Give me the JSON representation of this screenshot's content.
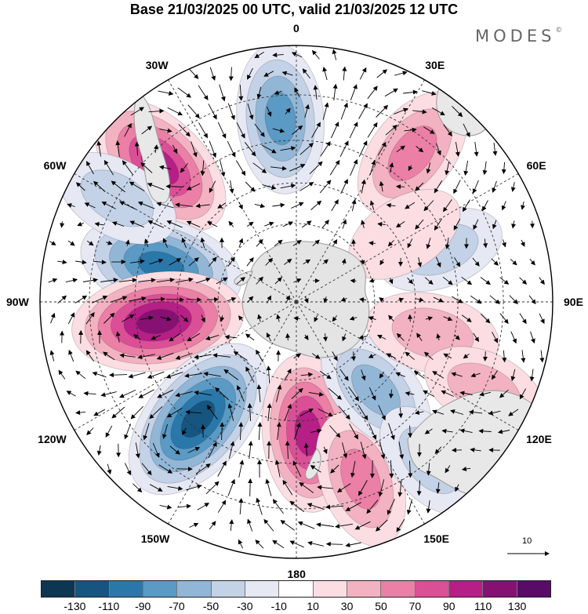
{
  "title": "Base 21/03/2025 00 UTC, valid 21/03/2025 12 UTC",
  "logo": {
    "text": "MODES",
    "mark": "©"
  },
  "projection": "south-polar-stereographic",
  "longitude_labels": [
    {
      "id": "0",
      "text": "0",
      "lon": 0
    },
    {
      "id": "30e",
      "text": "30E",
      "lon": 30
    },
    {
      "id": "60e",
      "text": "60E",
      "lon": 60
    },
    {
      "id": "90e",
      "text": "90E",
      "lon": 90
    },
    {
      "id": "120e",
      "text": "120E",
      "lon": 120
    },
    {
      "id": "150e",
      "text": "150E",
      "lon": 150
    },
    {
      "id": "180",
      "text": "180",
      "lon": 180
    },
    {
      "id": "150w",
      "text": "150W",
      "lon": -150
    },
    {
      "id": "120w",
      "text": "120W",
      "lon": -120
    },
    {
      "id": "90w",
      "text": "90W",
      "lon": -90
    },
    {
      "id": "60w",
      "text": "60W",
      "lon": -60
    },
    {
      "id": "30w",
      "text": "30W",
      "lon": -30
    }
  ],
  "field_anomalies": [
    {
      "lon": -45,
      "lat": -43,
      "value": 95
    },
    {
      "lon": -5,
      "lat": -45,
      "value": -75
    },
    {
      "lon": 38,
      "lat": -44,
      "value": 60
    },
    {
      "lon": -75,
      "lat": -55,
      "value": -100
    },
    {
      "lon": -98,
      "lat": -55,
      "value": 115
    },
    {
      "lon": -140,
      "lat": -52,
      "value": -125
    },
    {
      "lon": 175,
      "lat": -57,
      "value": 90
    },
    {
      "lon": 160,
      "lat": -44,
      "value": 55
    },
    {
      "lon": 138,
      "lat": -60,
      "value": -50
    },
    {
      "lon": 103,
      "lat": -55,
      "value": 45
    },
    {
      "lon": 70,
      "lat": -52,
      "value": -35
    },
    {
      "lon": 58,
      "lat": -58,
      "value": 25
    },
    {
      "lon": -60,
      "lat": -40,
      "value": -35
    },
    {
      "lon": 140,
      "lat": -40,
      "value": -30
    },
    {
      "lon": 115,
      "lat": -40,
      "value": 30
    }
  ],
  "wind_reference": {
    "label": "10",
    "value": 10
  },
  "colorbar": {
    "colors": [
      "#0e3552",
      "#15557f",
      "#2a78aa",
      "#5a9ac4",
      "#92b6d6",
      "#c3d2e6",
      "#e6e8f3",
      "#ffffff",
      "#fbdde2",
      "#f3b2c1",
      "#eb7fa5",
      "#db4f97",
      "#b51f86",
      "#861172",
      "#580c68"
    ],
    "tick_labels": [
      "-130",
      "-110",
      "-90",
      "-70",
      "-50",
      "-30",
      "-10",
      "10",
      "30",
      "50",
      "70",
      "90",
      "110",
      "130"
    ]
  }
}
